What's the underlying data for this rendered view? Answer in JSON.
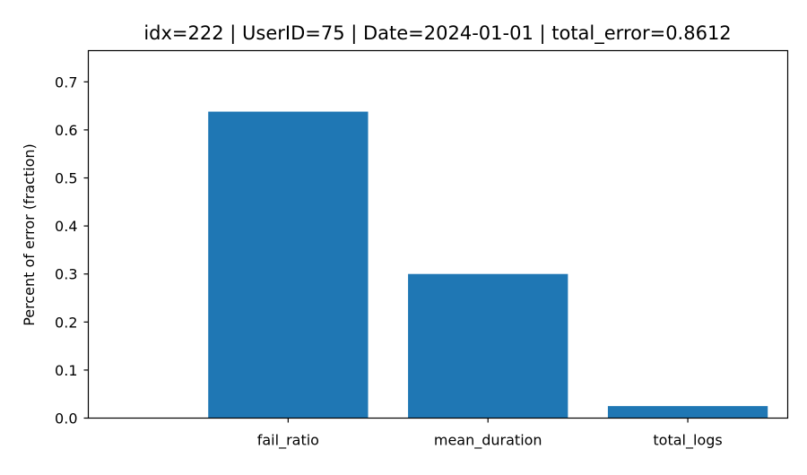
{
  "chart_data": {
    "type": "bar",
    "title": "idx=222 | UserID=75 | Date=2024-01-01 | total_error=0.8612",
    "xlabel": "",
    "ylabel": "Percent of error (fraction)",
    "categories": [
      "fail_ratio",
      "mean_duration",
      "total_logs"
    ],
    "values": [
      0.638,
      0.3,
      0.025
    ],
    "ylim": [
      0,
      0.765
    ],
    "yticks": [
      "0.0",
      "0.1",
      "0.2",
      "0.3",
      "0.4",
      "0.5",
      "0.6",
      "0.7"
    ],
    "bar_color": "#1f77b4",
    "grid": false,
    "legend": "none"
  }
}
